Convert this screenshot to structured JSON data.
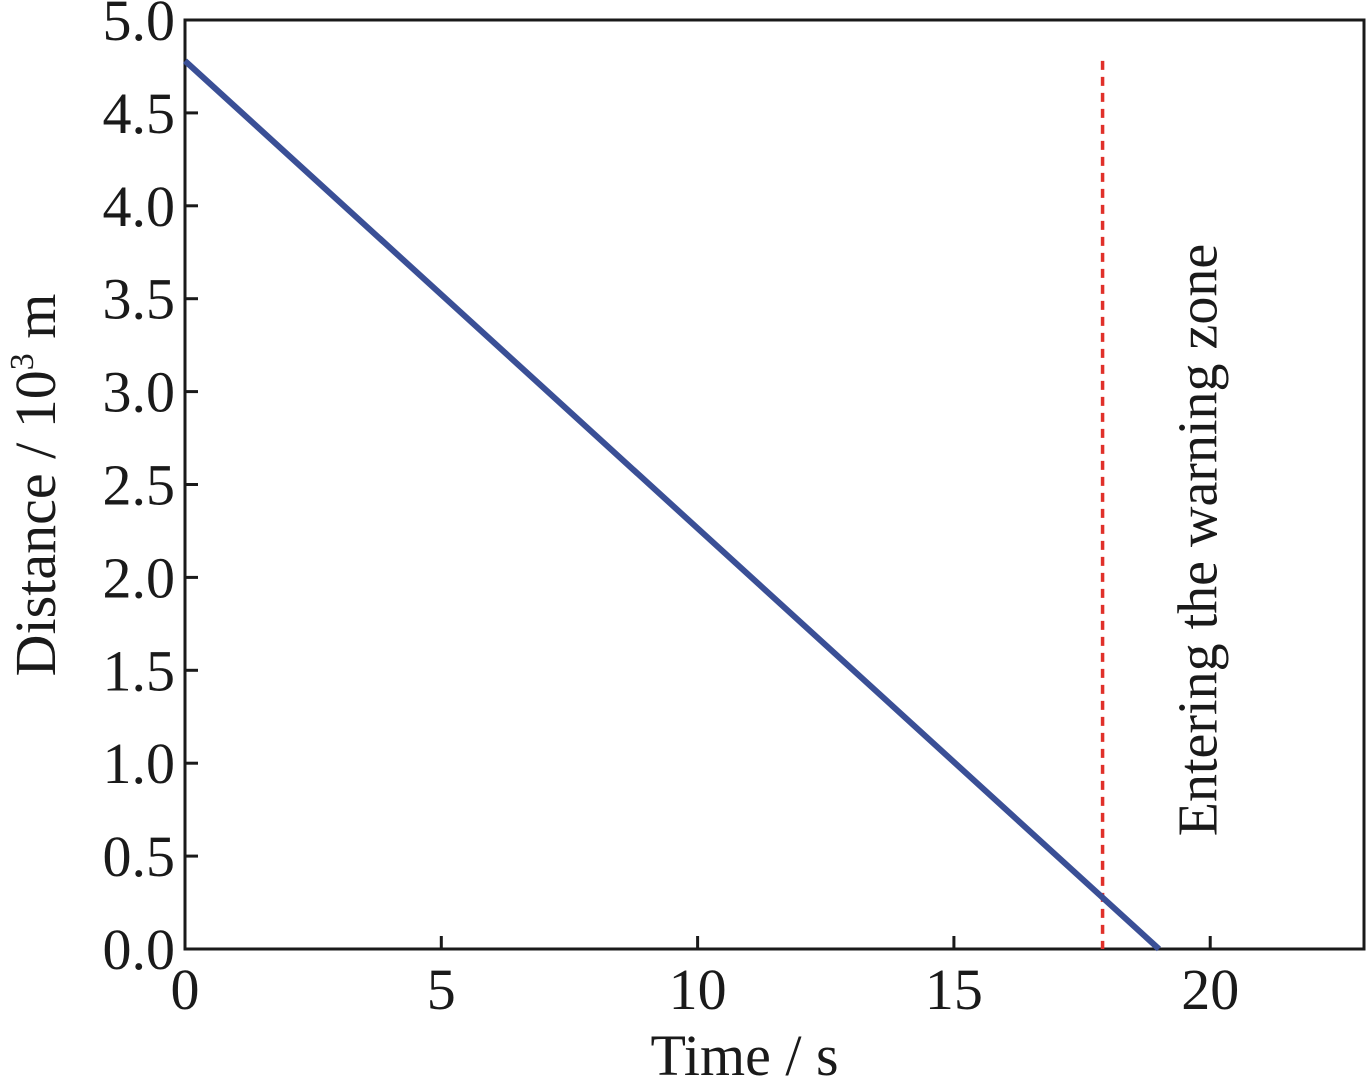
{
  "chart_data": {
    "type": "line",
    "xlabel": "Time / s",
    "ylabel": {
      "prefix": "Distance / 10",
      "superscript": "3",
      "suffix": " m"
    },
    "xlim": [
      0,
      23
    ],
    "ylim": [
      0,
      5.0
    ],
    "x_ticks": [
      0,
      5,
      10,
      15,
      20
    ],
    "x_tick_labels": [
      "0",
      "5",
      "10",
      "15",
      "20"
    ],
    "y_ticks": [
      0,
      0.5,
      1.0,
      1.5,
      2.0,
      2.5,
      3.0,
      3.5,
      4.0,
      4.5,
      5.0
    ],
    "y_tick_labels": [
      "0.0",
      "0.5",
      "1.0",
      "1.5",
      "2.0",
      "2.5",
      "3.0",
      "3.5",
      "4.0",
      "4.5",
      "5.0"
    ],
    "grid": false,
    "series": [
      {
        "x": [
          0,
          19
        ],
        "y": [
          4.78,
          0.0
        ],
        "color": "#3a4f96"
      }
    ],
    "annotations": [
      {
        "type": "vline",
        "x": 17.9,
        "y_range": [
          0,
          4.78
        ],
        "style": "dashed",
        "color": "#e0302a",
        "label": "Entering the warning zone"
      }
    ]
  }
}
